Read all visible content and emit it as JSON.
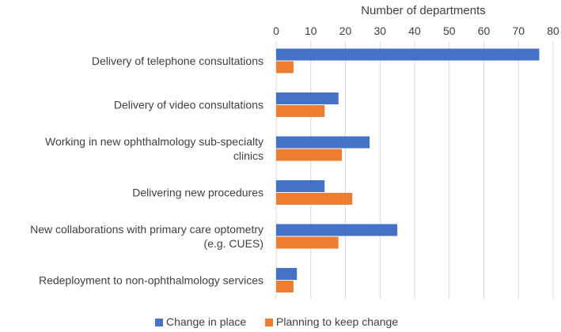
{
  "chart_data": {
    "type": "bar",
    "orientation": "horizontal",
    "title": "",
    "xlabel": "Number of departments",
    "ylabel": "",
    "xlim": [
      0,
      80
    ],
    "x_ticks": [
      0,
      10,
      20,
      30,
      40,
      50,
      60,
      70,
      80
    ],
    "grid": true,
    "categories": [
      [
        "Delivery of telephone consultations"
      ],
      [
        "Delivery of video consultations"
      ],
      [
        "Working in new ophthalmology sub-specialty",
        "clinics"
      ],
      [
        "Delivering new procedures"
      ],
      [
        "New collaborations with primary care optometry",
        "(e.g. CUES)"
      ],
      [
        "Redeployment to non-ophthalmology services"
      ]
    ],
    "series": [
      {
        "name": "Change in place",
        "color": "#4472c4",
        "values": [
          76,
          18,
          27,
          14,
          35,
          6
        ]
      },
      {
        "name": "Planning to keep change",
        "color": "#ed7d31",
        "values": [
          5,
          14,
          19,
          22,
          18,
          5
        ]
      }
    ],
    "legend_position": "bottom"
  }
}
